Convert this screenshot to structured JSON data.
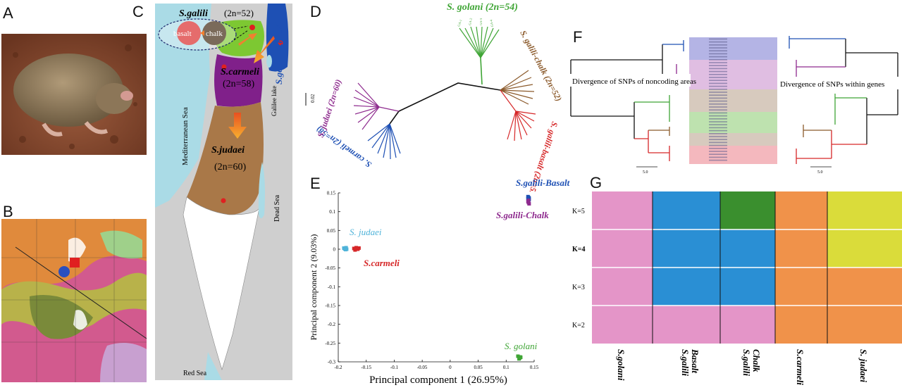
{
  "panels": {
    "a": "A",
    "b": "B",
    "c": "C",
    "d": "D",
    "e": "E",
    "f": "F",
    "g": "G"
  },
  "map": {
    "galili_name": "S.galili",
    "galili_karyo": "(2n=52)",
    "basalt": "basalt",
    "chalk": "chalk",
    "golani": "S.golani (2n=54)",
    "carmeli_name": "S.carmeli",
    "carmeli_karyo": "(2n=58)",
    "judaei_name": "S.judaei",
    "judaei_karyo": "(2n=60)",
    "mediterranean": "Mediterranean Sea",
    "galilee": "Galilee lake",
    "dead_sea": "Dead Sea",
    "red_sea": "Red Sea",
    "colors": {
      "sea": "#aadbe6",
      "golani": "#1e50b4",
      "galili": "#7dc832",
      "carmeli": "#80208a",
      "judaei": "#a97848",
      "land": "#cccccc",
      "desert": "#ffffff",
      "basalt": "#e56c6c",
      "chalk": "#7a6a5a"
    }
  },
  "tree": {
    "golani": "S. golani (2n=54)",
    "chalk": "S. galili-chalk (2n=52)",
    "basalt": "S. galili-basalt (2n=52)",
    "carmeli": "S. carmeli (2n=58)",
    "judaei": "S. judaei (2n=60)",
    "scale": "0.02"
  },
  "pca_labels": {
    "basalt": "S.galili-Basalt",
    "chalk": "S.galili-Chalk",
    "judaei": "S. judaei",
    "carmeli": "S.carmeli",
    "golani": "S. golani"
  },
  "chart_data": {
    "type": "scatter",
    "xlabel": "Principal component 1 (26.95%)",
    "ylabel": "Principal component 2 (9.03%)",
    "xlim": [
      -0.2,
      0.15
    ],
    "ylim": [
      -0.3,
      0.15
    ],
    "x_ticks": [
      "-0.2",
      "-0.15",
      "-0.1",
      "-0.05",
      "0",
      "0.05",
      "0.1",
      "0.15"
    ],
    "y_ticks": [
      "-0.3",
      "-0.25",
      "-0.2",
      "-0.15",
      "-0.1",
      "-0.05",
      "0",
      "0.05",
      "0.1",
      "0.15"
    ],
    "series": [
      {
        "name": "S. judaei",
        "color": "#4fb3d9",
        "x": [
          -0.19,
          -0.188,
          -0.186,
          -0.185,
          -0.189,
          -0.187
        ],
        "y": [
          0.003,
          0.001,
          0.004,
          0.0,
          0.002,
          -0.001
        ]
      },
      {
        "name": "S.carmeli",
        "color": "#d62728",
        "x": [
          -0.172,
          -0.168,
          -0.165,
          -0.17,
          -0.163,
          -0.167
        ],
        "y": [
          0.002,
          0.004,
          0.0,
          -0.002,
          0.003,
          0.001
        ]
      },
      {
        "name": "S.galili-Basalt",
        "color": "#1e50b4",
        "x": [
          0.139,
          0.14,
          0.141,
          0.139,
          0.141
        ],
        "y": [
          0.135,
          0.138,
          0.132,
          0.14,
          0.136
        ]
      },
      {
        "name": "S.galili-Chalk",
        "color": "#8e2a8e",
        "x": [
          0.14,
          0.139,
          0.141,
          0.14
        ],
        "y": [
          0.124,
          0.127,
          0.121,
          0.13
        ]
      },
      {
        "name": "S. golani",
        "color": "#3fa535",
        "x": [
          0.121,
          0.124,
          0.126,
          0.123,
          0.125
        ],
        "y": [
          -0.285,
          -0.29,
          -0.288,
          -0.292,
          -0.287
        ]
      }
    ]
  },
  "phylo_f": {
    "left": "Divergence of SNPs of noncoding areas",
    "right": "Divergence of SNPs within genes",
    "scale_left": "5.0",
    "scale_right": "5.0"
  },
  "structure": {
    "rows": [
      "K=5",
      "K=4",
      "K=3",
      "K=2"
    ],
    "columns": [
      "S.golani",
      "S.galili\nBasalt",
      "S.galili\nChalk",
      "S.carmeli",
      "S. judaei"
    ],
    "colors": {
      "pink": "#e495c8",
      "blue": "#2a8fd4",
      "green": "#3a8f2e",
      "orange": "#f0924a",
      "yellow": "#dadc3a"
    },
    "grid": [
      [
        "pink",
        "blue",
        "green",
        "orange",
        "yellow"
      ],
      [
        "pink",
        "blue",
        "blue",
        "orange",
        "yellow"
      ],
      [
        "pink",
        "blue",
        "blue",
        "orange",
        "orange"
      ],
      [
        "pink",
        "pink",
        "pink",
        "orange",
        "orange"
      ]
    ]
  }
}
